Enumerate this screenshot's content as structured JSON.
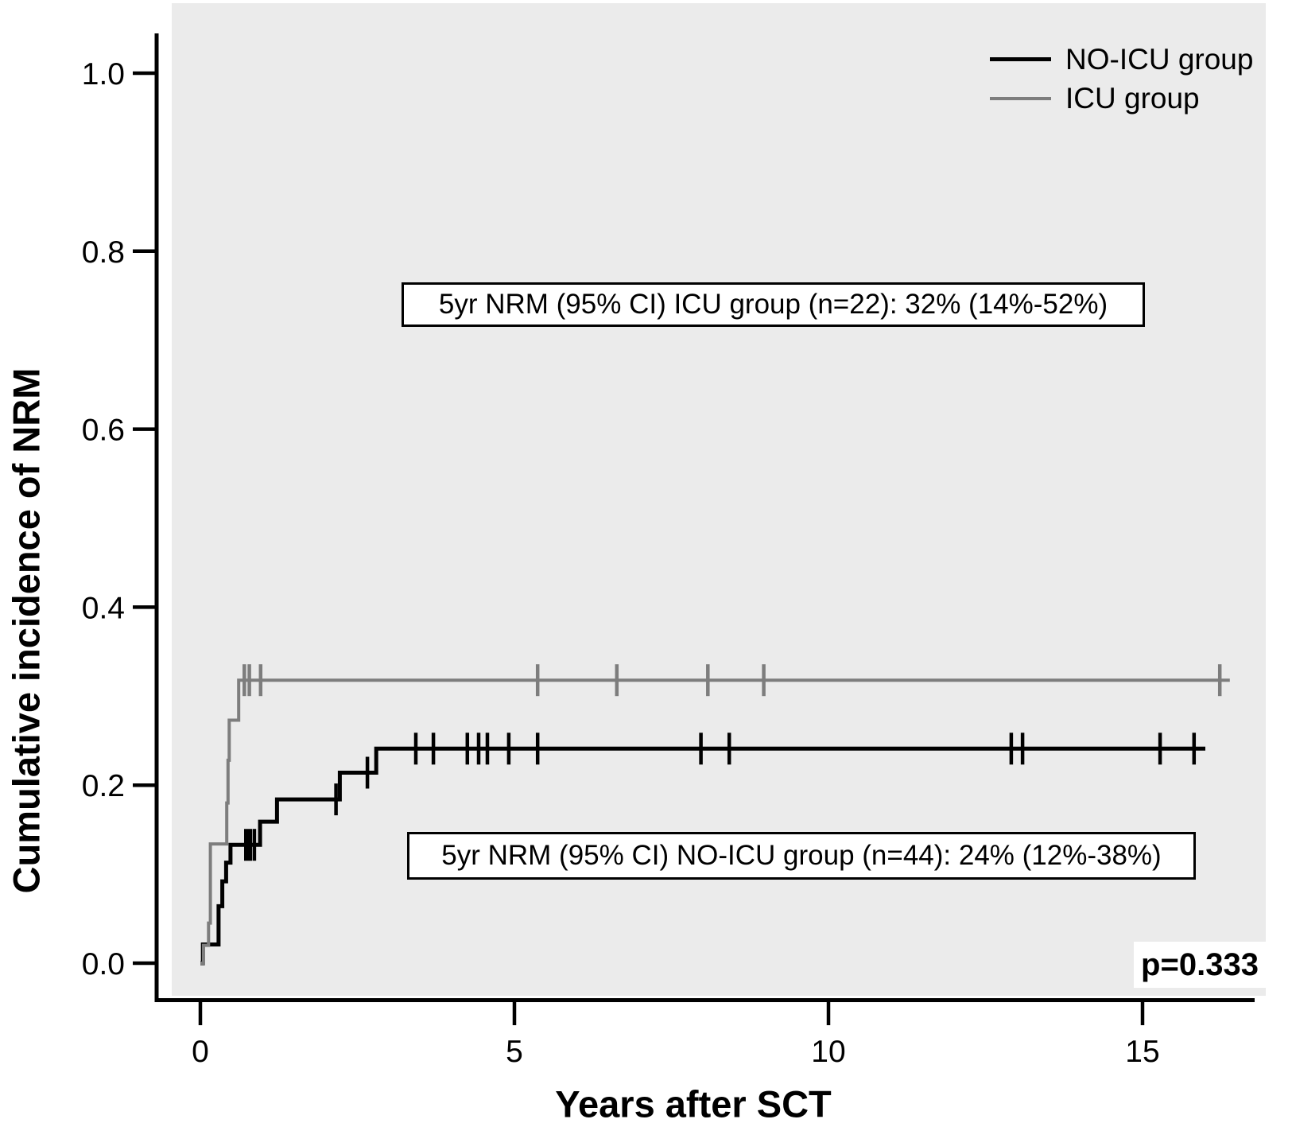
{
  "chart_data": {
    "type": "line",
    "subtype": "cumulative-incidence-step-curves",
    "title": "",
    "xlabel": "Years after SCT",
    "ylabel": "Cumulative incidence of NRM",
    "xlim": [
      0,
      16.6
    ],
    "ylim": [
      0,
      1.05
    ],
    "grid": false,
    "legend_position": "top-right",
    "plot_bg_color": "#ebebeb",
    "x_ticks": [
      {
        "value": 0,
        "label": "0"
      },
      {
        "value": 5,
        "label": "5"
      },
      {
        "value": 10,
        "label": "10"
      },
      {
        "value": 15,
        "label": "15"
      }
    ],
    "y_ticks": [
      {
        "value": 1.0,
        "label": "1.0"
      },
      {
        "value": 0.8,
        "label": "0.8"
      },
      {
        "value": 0.6,
        "label": "0.6"
      },
      {
        "value": 0.4,
        "label": "0.4"
      },
      {
        "value": 0.2,
        "label": "0.2"
      },
      {
        "value": 0.0,
        "label": "0.0"
      }
    ],
    "series": [
      {
        "id": "no-icu-group",
        "name": "NO-ICU group",
        "n": 44,
        "color": "#000000",
        "line_width": 5,
        "end_x": 16.0,
        "steps": [
          [
            0,
            0
          ],
          [
            0.04,
            0.021
          ],
          [
            0.29,
            0.064
          ],
          [
            0.35,
            0.092
          ],
          [
            0.41,
            0.113
          ],
          [
            0.48,
            0.133
          ],
          [
            0.95,
            0.159
          ],
          [
            1.22,
            0.184
          ],
          [
            2.22,
            0.214
          ],
          [
            2.8,
            0.241
          ]
        ],
        "censors": [
          {
            "x": 0.76,
            "y": 0.133,
            "bold": true
          },
          {
            "x": 0.86,
            "y": 0.133
          },
          {
            "x": 2.16,
            "y": 0.184
          },
          {
            "x": 2.66,
            "y": 0.214
          },
          {
            "x": 3.43,
            "y": 0.241
          },
          {
            "x": 3.71,
            "y": 0.241
          },
          {
            "x": 4.25,
            "y": 0.241
          },
          {
            "x": 4.43,
            "y": 0.241
          },
          {
            "x": 4.57,
            "y": 0.241
          },
          {
            "x": 4.91,
            "y": 0.241
          },
          {
            "x": 5.37,
            "y": 0.241
          },
          {
            "x": 7.97,
            "y": 0.241
          },
          {
            "x": 8.42,
            "y": 0.241
          },
          {
            "x": 12.91,
            "y": 0.241
          },
          {
            "x": 13.09,
            "y": 0.241
          },
          {
            "x": 15.28,
            "y": 0.241
          },
          {
            "x": 15.82,
            "y": 0.241
          }
        ],
        "five_year_summary": "5yr NRM (95% CI) NO-ICU group (n=44): 24% (12%-38%)"
      },
      {
        "id": "icu-group",
        "name": "ICU group",
        "n": 22,
        "color": "#7d7d7d",
        "line_width": 4,
        "end_x": 16.39,
        "steps": [
          [
            0,
            0
          ],
          [
            0.05,
            0.02
          ],
          [
            0.13,
            0.045
          ],
          [
            0.16,
            0.134
          ],
          [
            0.42,
            0.18
          ],
          [
            0.44,
            0.228
          ],
          [
            0.46,
            0.273
          ],
          [
            0.61,
            0.318
          ]
        ],
        "censors": [
          {
            "x": 0.7,
            "y": 0.318
          },
          {
            "x": 0.78,
            "y": 0.318
          },
          {
            "x": 0.96,
            "y": 0.318
          },
          {
            "x": 5.37,
            "y": 0.318
          },
          {
            "x": 6.63,
            "y": 0.318
          },
          {
            "x": 8.08,
            "y": 0.318
          },
          {
            "x": 8.97,
            "y": 0.318
          },
          {
            "x": 16.23,
            "y": 0.318
          }
        ],
        "five_year_summary": "5yr NRM (95% CI) ICU group (n=22): 32% (14%-52%)"
      }
    ],
    "annotations": [
      {
        "text": "5yr NRM (95% CI) ICU group (n=22): 32% (14%-52%)"
      },
      {
        "text": "5yr NRM (95% CI) NO-ICU group (n=44): 24% (12%-38%)"
      }
    ],
    "p_value": "p=0.333"
  }
}
